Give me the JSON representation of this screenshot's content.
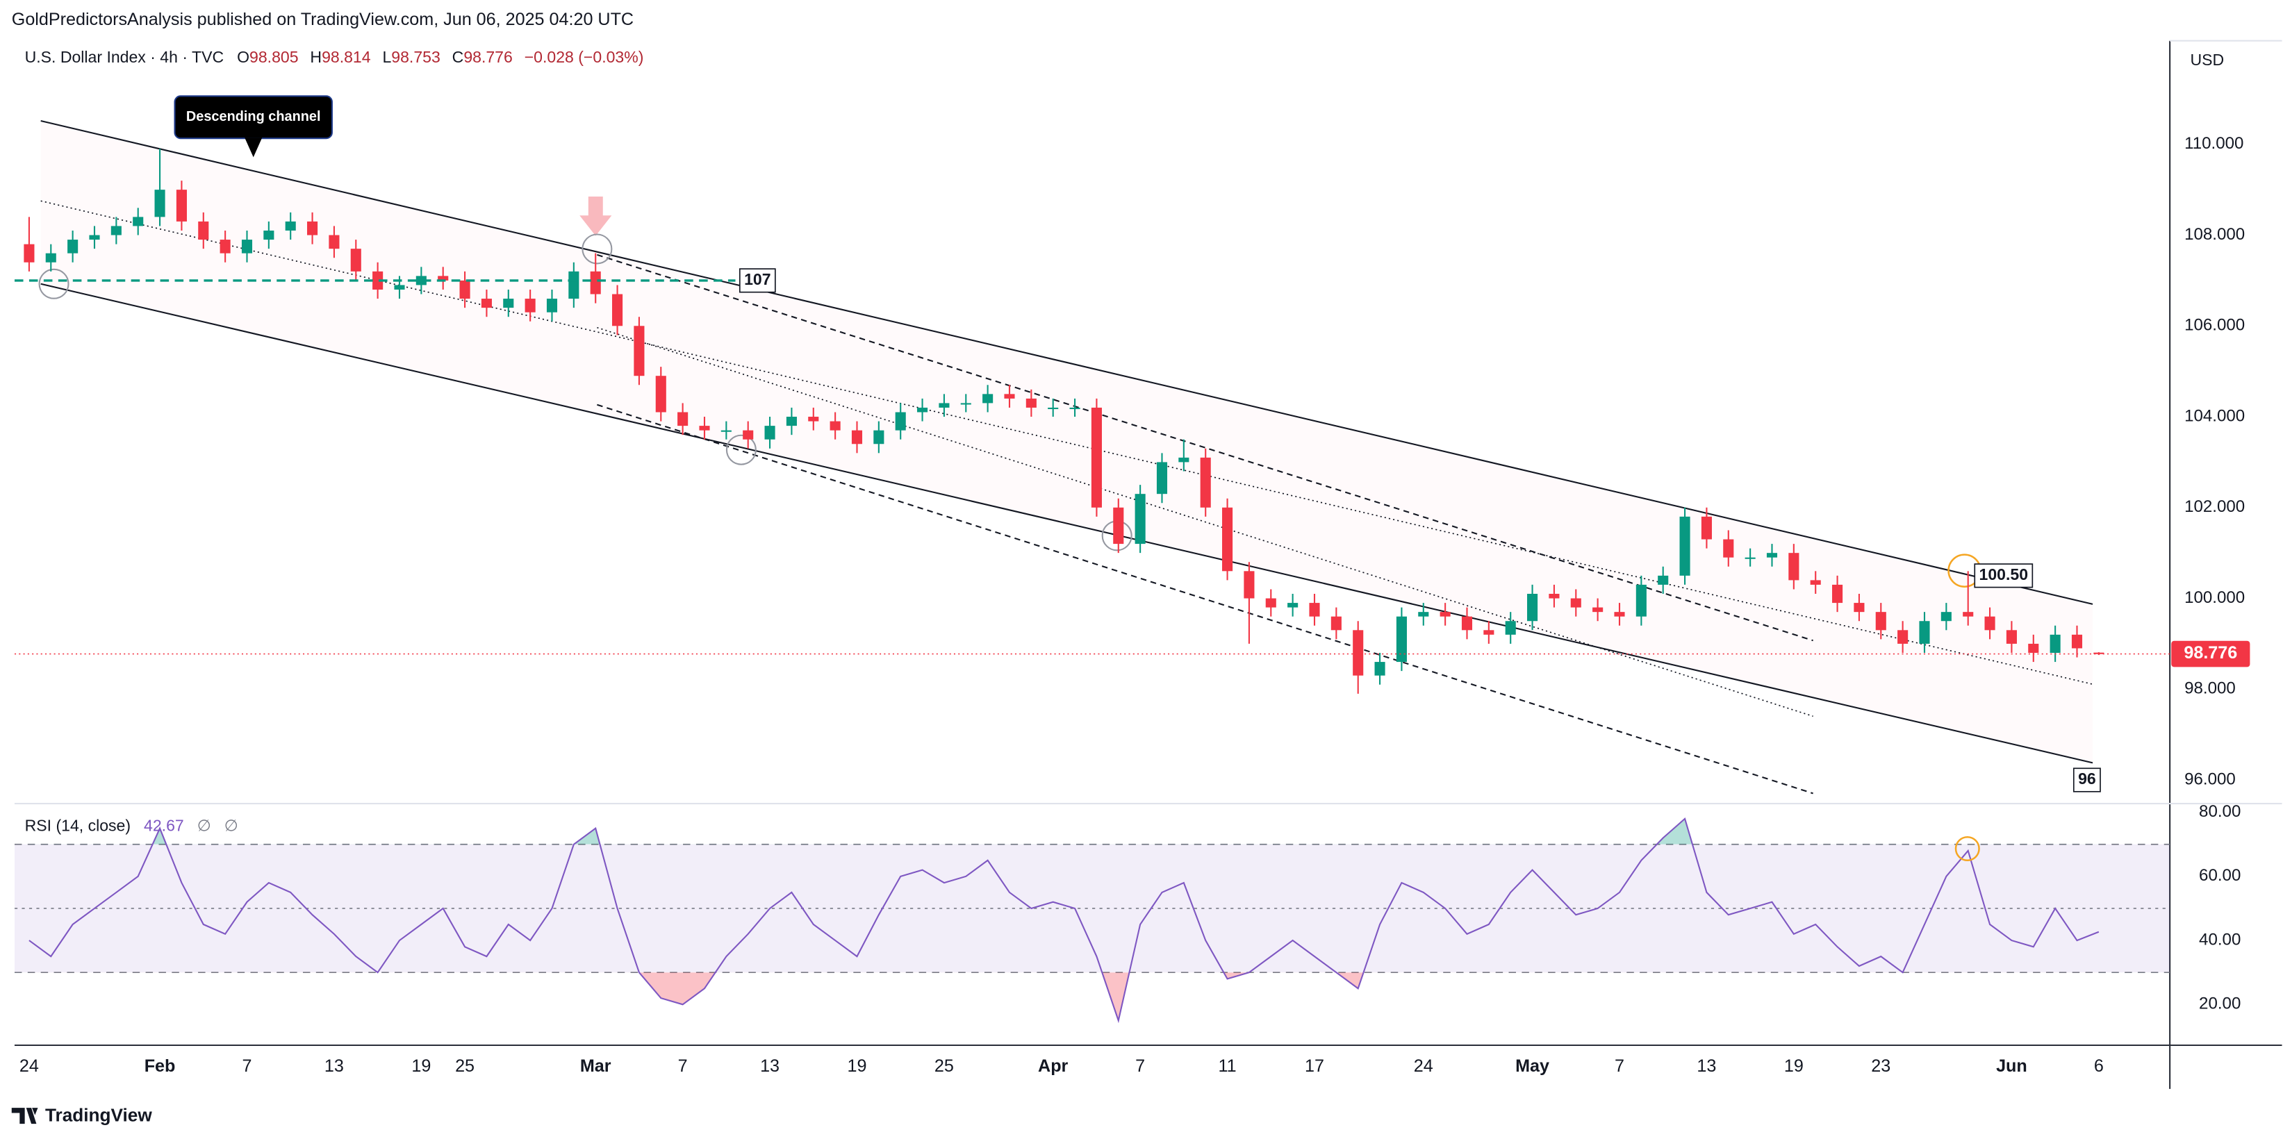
{
  "publisher": "GoldPredictorsAnalysis published on TradingView.com, Jun 06, 2025 04:20 UTC",
  "footer": "TradingView",
  "chart_data": {
    "type": "candlestick",
    "title": "U.S. Dollar Index · 4h · TVC",
    "ohlc": [
      {
        "label": "O",
        "value": 98.805
      },
      {
        "label": "H",
        "value": 98.814
      },
      {
        "label": "L",
        "value": 98.753
      },
      {
        "label": "C",
        "value": 98.776
      }
    ],
    "change": "−0.028 (−0.03%)",
    "currency": "USD",
    "categories": [
      "24",
      null,
      null,
      null,
      null,
      null,
      "Feb",
      null,
      null,
      null,
      "7",
      null,
      null,
      null,
      "13",
      null,
      null,
      null,
      "19",
      null,
      "25",
      null,
      null,
      null,
      null,
      null,
      "Mar",
      null,
      null,
      null,
      "7",
      null,
      null,
      null,
      "13",
      null,
      null,
      null,
      "19",
      null,
      null,
      null,
      "25",
      null,
      null,
      null,
      null,
      "Apr",
      null,
      null,
      null,
      "7",
      null,
      null,
      null,
      "11",
      null,
      null,
      null,
      "17",
      null,
      null,
      null,
      null,
      "24",
      null,
      null,
      null,
      null,
      "May",
      null,
      null,
      null,
      "7",
      null,
      null,
      null,
      "13",
      null,
      null,
      null,
      "19",
      null,
      null,
      null,
      "23",
      null,
      null,
      null,
      null,
      null,
      "Jun",
      null,
      null,
      null,
      "6"
    ],
    "open": [
      107.8,
      107.4,
      107.6,
      107.9,
      108.0,
      108.2,
      108.4,
      109.0,
      108.3,
      107.9,
      107.6,
      107.9,
      108.1,
      108.3,
      108.0,
      107.7,
      107.2,
      106.8,
      106.9,
      107.1,
      107.0,
      106.6,
      106.4,
      106.6,
      106.3,
      106.6,
      107.2,
      106.7,
      106.0,
      104.9,
      104.1,
      103.8,
      103.7,
      103.7,
      103.5,
      103.8,
      104.0,
      103.9,
      103.7,
      103.4,
      103.7,
      104.1,
      104.2,
      104.3,
      104.3,
      104.5,
      104.4,
      104.2,
      104.2,
      104.2,
      102.0,
      101.2,
      102.3,
      103.0,
      103.1,
      102.0,
      100.6,
      100.0,
      99.8,
      99.9,
      99.6,
      99.3,
      98.3,
      98.6,
      99.6,
      99.7,
      99.6,
      99.3,
      99.2,
      99.5,
      100.1,
      100.0,
      99.8,
      99.7,
      99.6,
      100.3,
      100.5,
      101.8,
      101.3,
      100.9,
      100.9,
      101.0,
      100.4,
      100.3,
      99.9,
      99.7,
      99.3,
      99.0,
      99.5,
      99.7,
      99.6,
      99.3,
      99.0,
      98.8,
      99.2,
      98.805
    ],
    "high": [
      108.4,
      107.8,
      108.1,
      108.2,
      108.4,
      108.6,
      109.9,
      109.2,
      108.5,
      108.1,
      108.1,
      108.3,
      108.5,
      108.5,
      108.2,
      107.9,
      107.4,
      107.1,
      107.3,
      107.3,
      107.2,
      106.8,
      106.8,
      106.8,
      106.8,
      107.4,
      107.6,
      106.9,
      106.2,
      105.1,
      104.3,
      104.0,
      103.9,
      103.9,
      104.0,
      104.2,
      104.2,
      104.1,
      103.9,
      103.9,
      104.3,
      104.4,
      104.5,
      104.5,
      104.7,
      104.7,
      104.6,
      104.4,
      104.4,
      104.4,
      102.2,
      102.5,
      103.2,
      103.5,
      103.3,
      102.2,
      100.8,
      100.2,
      100.1,
      100.1,
      99.8,
      99.5,
      98.8,
      99.8,
      99.9,
      99.9,
      99.8,
      99.5,
      99.7,
      100.3,
      100.3,
      100.2,
      100.0,
      99.9,
      100.5,
      100.7,
      102.0,
      102.0,
      101.5,
      101.1,
      101.2,
      101.2,
      100.6,
      100.5,
      100.1,
      99.9,
      99.5,
      99.7,
      99.9,
      100.6,
      99.8,
      99.5,
      99.2,
      99.4,
      99.4,
      98.814
    ],
    "low": [
      107.2,
      107.2,
      107.4,
      107.7,
      107.8,
      108.0,
      108.2,
      108.1,
      107.7,
      107.4,
      107.4,
      107.7,
      107.9,
      107.8,
      107.5,
      107.0,
      106.6,
      106.6,
      106.7,
      106.8,
      106.4,
      106.2,
      106.2,
      106.1,
      106.1,
      106.4,
      106.5,
      105.8,
      104.7,
      103.9,
      103.6,
      103.5,
      103.5,
      103.3,
      103.3,
      103.6,
      103.7,
      103.5,
      103.2,
      103.2,
      103.5,
      103.9,
      104.0,
      104.1,
      104.1,
      104.2,
      104.0,
      104.0,
      104.0,
      101.8,
      101.0,
      101.0,
      102.1,
      102.8,
      101.8,
      100.4,
      99.0,
      99.6,
      99.6,
      99.4,
      99.1,
      97.9,
      98.1,
      98.4,
      99.4,
      99.4,
      99.1,
      99.0,
      99.0,
      99.3,
      99.8,
      99.6,
      99.5,
      99.4,
      99.4,
      100.1,
      100.3,
      101.1,
      100.7,
      100.7,
      100.7,
      100.2,
      100.1,
      99.7,
      99.5,
      99.1,
      98.8,
      98.8,
      99.3,
      99.4,
      99.1,
      98.8,
      98.6,
      98.6,
      98.7,
      98.753
    ],
    "close": [
      107.4,
      107.6,
      107.9,
      108.0,
      108.2,
      108.4,
      109.0,
      108.3,
      107.9,
      107.6,
      107.9,
      108.1,
      108.3,
      108.0,
      107.7,
      107.2,
      106.8,
      106.9,
      107.1,
      107.0,
      106.6,
      106.4,
      106.6,
      106.3,
      106.6,
      107.2,
      106.7,
      106.0,
      104.9,
      104.1,
      103.8,
      103.7,
      103.7,
      103.5,
      103.8,
      104.0,
      103.9,
      103.7,
      103.4,
      103.7,
      104.1,
      104.2,
      104.3,
      104.3,
      104.5,
      104.4,
      104.2,
      104.2,
      104.2,
      102.0,
      101.2,
      102.3,
      103.0,
      103.1,
      102.0,
      100.6,
      100.0,
      99.8,
      99.9,
      99.6,
      99.3,
      98.3,
      98.6,
      99.6,
      99.7,
      99.6,
      99.3,
      99.2,
      99.5,
      100.1,
      100.0,
      99.8,
      99.7,
      99.6,
      100.3,
      100.5,
      101.8,
      101.3,
      100.9,
      100.9,
      101.0,
      100.4,
      100.3,
      99.9,
      99.7,
      99.3,
      99.0,
      99.5,
      99.7,
      99.6,
      99.3,
      99.0,
      98.8,
      99.2,
      98.9,
      98.776
    ],
    "up_color": "#089981",
    "down_color": "#f23645",
    "ylim": [
      95.48,
      112.28
    ],
    "yticks": [
      {
        "value": 96,
        "label": "96.000"
      },
      {
        "value": 98,
        "label": "98.000"
      },
      {
        "value": 100,
        "label": "100.000"
      },
      {
        "value": 102,
        "label": "102.000"
      },
      {
        "value": 104,
        "label": "104.000"
      },
      {
        "value": 106,
        "label": "106.000"
      },
      {
        "value": 108,
        "label": "108.000"
      },
      {
        "value": 110,
        "label": "110.000"
      }
    ],
    "grid": false,
    "annotations": [
      {
        "text": "Descending channel"
      },
      {
        "value": 107,
        "label": "107"
      },
      {
        "value": 100.5,
        "label": "100.50"
      },
      {
        "value": 96,
        "label": "96"
      }
    ],
    "indicator": {
      "type": "line",
      "name": "RSI (14, close)",
      "extras": [
        "∅",
        "∅"
      ],
      "color": "#7e57c2",
      "values": [
        40,
        35,
        45,
        50,
        55,
        60,
        75,
        58,
        45,
        42,
        52,
        58,
        55,
        48,
        42,
        35,
        30,
        40,
        45,
        50,
        38,
        35,
        45,
        40,
        50,
        70,
        75,
        50,
        30,
        22,
        20,
        25,
        35,
        42,
        50,
        55,
        45,
        40,
        35,
        48,
        60,
        62,
        58,
        60,
        65,
        55,
        50,
        52,
        50,
        35,
        15,
        45,
        55,
        58,
        40,
        28,
        30,
        35,
        40,
        35,
        30,
        25,
        45,
        58,
        55,
        50,
        42,
        45,
        55,
        62,
        55,
        48,
        50,
        55,
        65,
        72,
        78,
        55,
        48,
        50,
        52,
        42,
        45,
        38,
        32,
        35,
        30,
        45,
        60,
        68,
        45,
        40,
        38,
        50,
        40,
        42.67
      ],
      "levels": [
        70,
        50,
        30
      ],
      "ylim": [
        7.27,
        82.73
      ],
      "yticks": [
        {
          "value": 20,
          "label": "20.00"
        },
        {
          "value": 40,
          "label": "40.00"
        },
        {
          "value": 60,
          "label": "60.00"
        },
        {
          "value": 80,
          "label": "80.00"
        }
      ]
    }
  }
}
